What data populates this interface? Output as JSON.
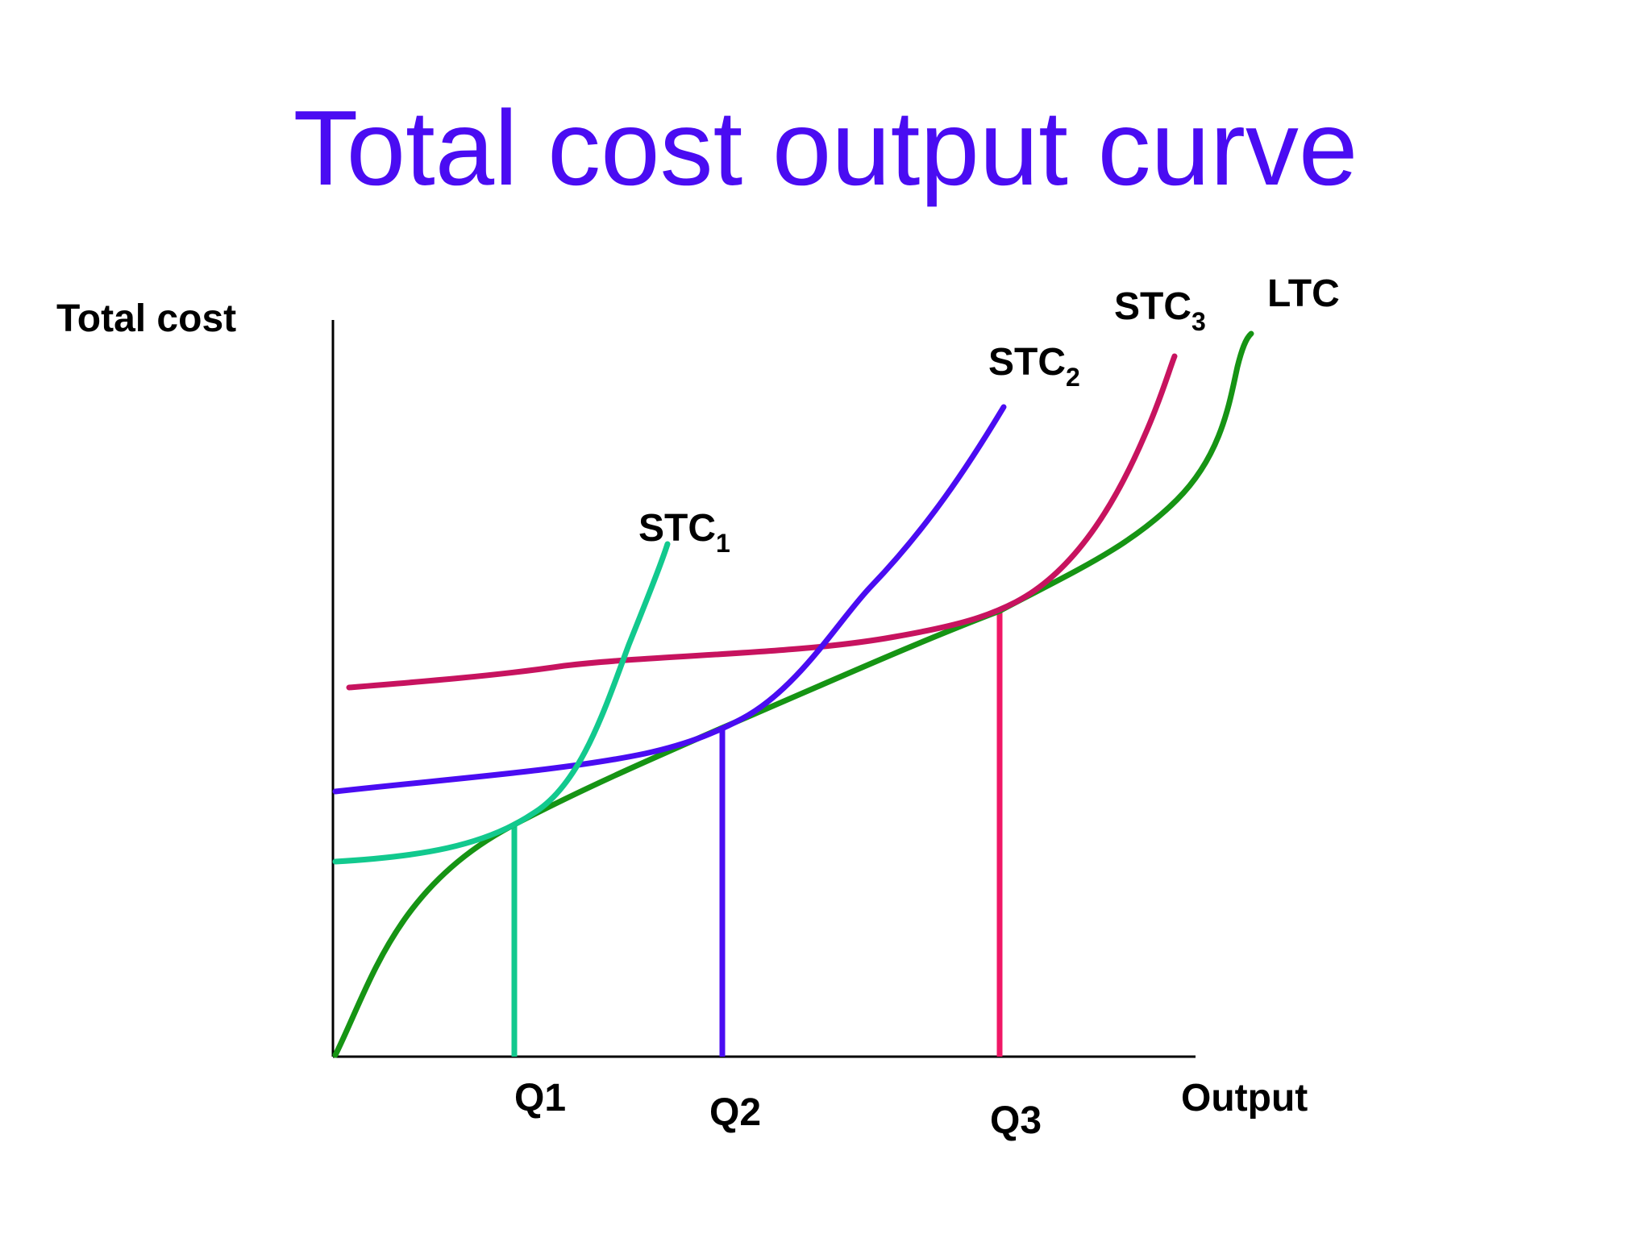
{
  "title": "Total cost output curve",
  "chart_data": {
    "type": "line",
    "title": "Total cost output curve",
    "ylabel": "Total cost",
    "xlabel": "Output",
    "x_ticks": [
      "Q1",
      "Q2",
      "Q3"
    ],
    "grid": false,
    "numeric_scale": false,
    "series": [
      {
        "name": "STC1",
        "label_main": "STC",
        "label_sub": "1",
        "color": "#12c98e"
      },
      {
        "name": "STC2",
        "label_main": "STC",
        "label_sub": "2",
        "color": "#4a0cf2"
      },
      {
        "name": "STC3",
        "label_main": "STC",
        "label_sub": "3",
        "color": "#c7135f"
      },
      {
        "name": "LTC",
        "label_main": "LTC",
        "label_sub": "",
        "color": "#169414"
      }
    ],
    "drop_lines": [
      {
        "at": "Q1",
        "color": "#12c98e"
      },
      {
        "at": "Q2",
        "color": "#4a0cf2"
      },
      {
        "at": "Q3",
        "color": "#f01766"
      }
    ]
  },
  "colors": {
    "title": "#4a0cf2",
    "axis": "#000000"
  }
}
